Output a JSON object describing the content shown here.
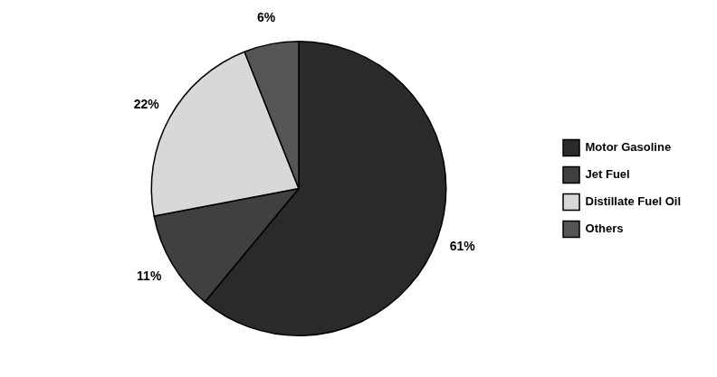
{
  "chart_data": {
    "type": "pie",
    "categories": [
      "Motor Gasoline",
      "Jet Fuel",
      "Distillate Fuel Oil",
      "Others"
    ],
    "values": [
      61,
      11,
      22,
      6
    ],
    "value_labels": [
      "61%",
      "11%",
      "22%",
      "6%"
    ],
    "colors": [
      "#2a2a2a",
      "#404040",
      "#d8d8d8",
      "#555555"
    ],
    "data_labels": true,
    "legend": "right"
  }
}
